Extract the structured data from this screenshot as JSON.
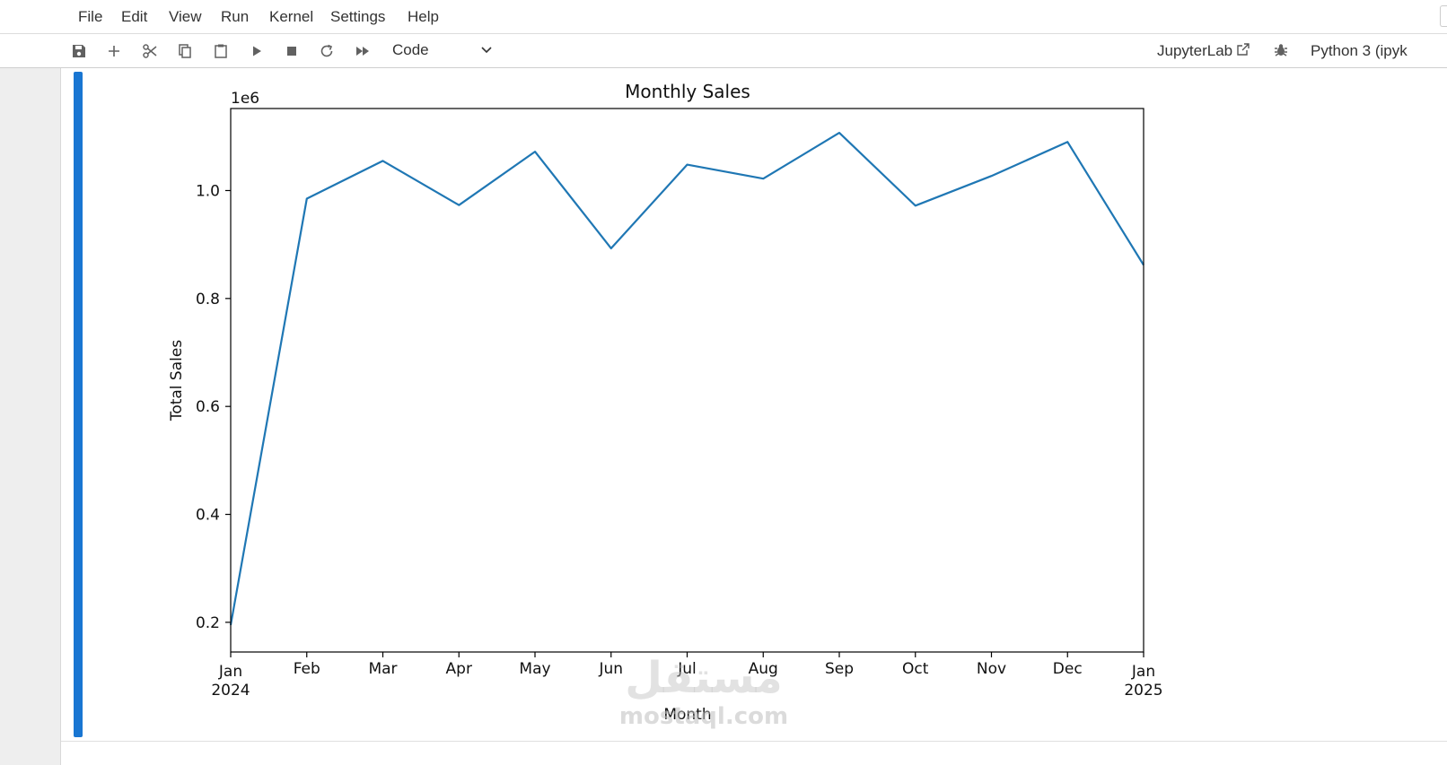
{
  "menu": [
    "File",
    "Edit",
    "View",
    "Run",
    "Kernel",
    "Settings",
    "Help"
  ],
  "toolbar": {
    "buttons": [
      "save-icon",
      "add-icon",
      "cut-icon",
      "copy-icon",
      "paste-icon",
      "run-icon",
      "stop-icon",
      "restart-icon",
      "fast-forward-icon"
    ],
    "cell_type": "Code",
    "jupyterlab_label": "JupyterLab",
    "kernel": "Python 3 (ipyk"
  },
  "colors": {
    "accent": "#1976d2",
    "line": "#1f77b4"
  },
  "watermark": {
    "logo": "مستقل",
    "url": "mostaql.com"
  },
  "chart_data": {
    "type": "line",
    "title": "Monthly Sales",
    "xlabel": "Month",
    "ylabel": "Total Sales",
    "scale_label": "1e6",
    "x": [
      "2024-01",
      "2024-02",
      "2024-03",
      "2024-04",
      "2024-05",
      "2024-06",
      "2024-07",
      "2024-08",
      "2024-09",
      "2024-10",
      "2024-11",
      "2024-12",
      "2025-01"
    ],
    "x_ticks": [
      {
        "month": "Jan",
        "year": "2024"
      },
      {
        "month": "Feb",
        "year": ""
      },
      {
        "month": "Mar",
        "year": ""
      },
      {
        "month": "Apr",
        "year": ""
      },
      {
        "month": "May",
        "year": ""
      },
      {
        "month": "Jun",
        "year": ""
      },
      {
        "month": "Jul",
        "year": ""
      },
      {
        "month": "Aug",
        "year": ""
      },
      {
        "month": "Sep",
        "year": ""
      },
      {
        "month": "Oct",
        "year": ""
      },
      {
        "month": "Nov",
        "year": ""
      },
      {
        "month": "Dec",
        "year": ""
      },
      {
        "month": "Jan",
        "year": "2025"
      }
    ],
    "series": [
      {
        "values": [
          195000,
          985000,
          1055000,
          973000,
          1072000,
          893000,
          1048000,
          1022000,
          1107000,
          972000,
          1027000,
          1090000,
          862000
        ]
      }
    ],
    "ylim": [
      145000,
      1152000
    ],
    "yticks": [
      {
        "value": 200000,
        "label": "0.2"
      },
      {
        "value": 400000,
        "label": "0.4"
      },
      {
        "value": 600000,
        "label": "0.6"
      },
      {
        "value": 800000,
        "label": "0.8"
      },
      {
        "value": 1000000,
        "label": "1.0"
      }
    ],
    "grid": false,
    "legend": "none"
  }
}
